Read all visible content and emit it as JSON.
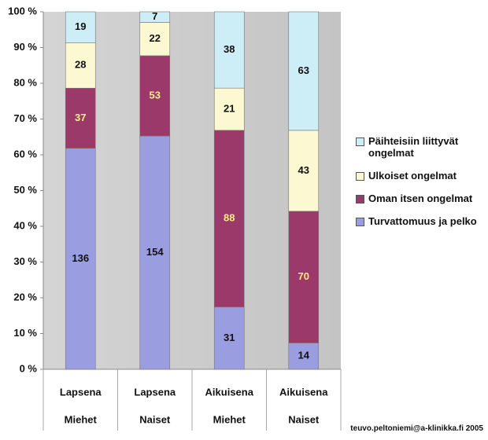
{
  "chart_data": {
    "type": "bar",
    "stacking": "percent",
    "categories": [
      [
        "Lapsena",
        "Miehet"
      ],
      [
        "Lapsena",
        "Naiset"
      ],
      [
        "Aikuisena",
        "Miehet"
      ],
      [
        "Aikuisena",
        "Naiset"
      ]
    ],
    "series": [
      {
        "name": "Turvattomuus ja pelko",
        "color": "#9a9de0",
        "label_color": "#111111",
        "values": [
          136,
          154,
          31,
          14
        ]
      },
      {
        "name": "Oman itsen ongelmat",
        "color": "#9b3a6a",
        "label_color": "#ffee88",
        "values": [
          37,
          53,
          88,
          70
        ]
      },
      {
        "name": "Ulkoiset ongelmat",
        "color": "#fbf8d2",
        "label_color": "#111111",
        "values": [
          28,
          22,
          21,
          43
        ]
      },
      {
        "name": "Päihteisiin liittyvät ongelmat",
        "color": "#cdeef7",
        "label_color": "#111111",
        "values": [
          19,
          7,
          38,
          63
        ]
      }
    ],
    "ylim": [
      0,
      100
    ],
    "yticks": [
      {
        "value": 0,
        "label": "0 %"
      },
      {
        "value": 10,
        "label": "10 %"
      },
      {
        "value": 20,
        "label": "20 %"
      },
      {
        "value": 30,
        "label": "30 %"
      },
      {
        "value": 40,
        "label": "40 %"
      },
      {
        "value": 50,
        "label": "50 %"
      },
      {
        "value": 60,
        "label": "60 %"
      },
      {
        "value": 70,
        "label": "70 %"
      },
      {
        "value": 80,
        "label": "80 %"
      },
      {
        "value": 90,
        "label": "90 %"
      },
      {
        "value": 100,
        "label": "100 %"
      }
    ],
    "legend": "right",
    "source": "teuvo.peltoniemi@a-klinikka.fi 2005"
  }
}
